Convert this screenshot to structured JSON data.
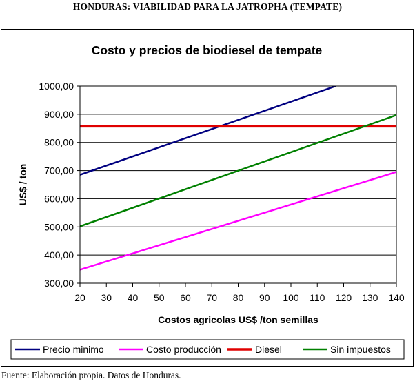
{
  "page": {
    "heading": "HONDURAS: VIABILIDAD PARA LA JATROPHA (TEMPATE)",
    "source": "Fuente: Elaboración propia. Datos de Honduras."
  },
  "chart_data": {
    "type": "line",
    "title": "Costo y precios de biodiesel de tempate",
    "xlabel": "Costos agricolas US$ /ton semillas",
    "ylabel": "US$ / ton",
    "xlim": [
      20,
      140
    ],
    "ylim": [
      300,
      1000
    ],
    "x_ticks": [
      20,
      30,
      40,
      50,
      60,
      70,
      80,
      90,
      100,
      110,
      120,
      130,
      140
    ],
    "y_ticks": [
      300,
      400,
      500,
      600,
      700,
      800,
      900,
      1000
    ],
    "y_tick_labels": [
      "300,00",
      "400,00",
      "500,00",
      "600,00",
      "700,00",
      "800,00",
      "900,00",
      "1000,00"
    ],
    "grid": "horizontal",
    "legend_position": "bottom",
    "series": [
      {
        "name": "Precio minimo",
        "color": "#000080",
        "x": [
          20,
          117
        ],
        "y": [
          685,
          1000
        ]
      },
      {
        "name": "Costo producción",
        "color": "#ff00ff",
        "x": [
          20,
          140
        ],
        "y": [
          348,
          695
        ]
      },
      {
        "name": "Diesel",
        "color": "#e00000",
        "x": [
          20,
          140
        ],
        "y": [
          857,
          857
        ]
      },
      {
        "name": "Sin impuestos",
        "color": "#008000",
        "x": [
          20,
          140
        ],
        "y": [
          502,
          897
        ]
      }
    ]
  }
}
